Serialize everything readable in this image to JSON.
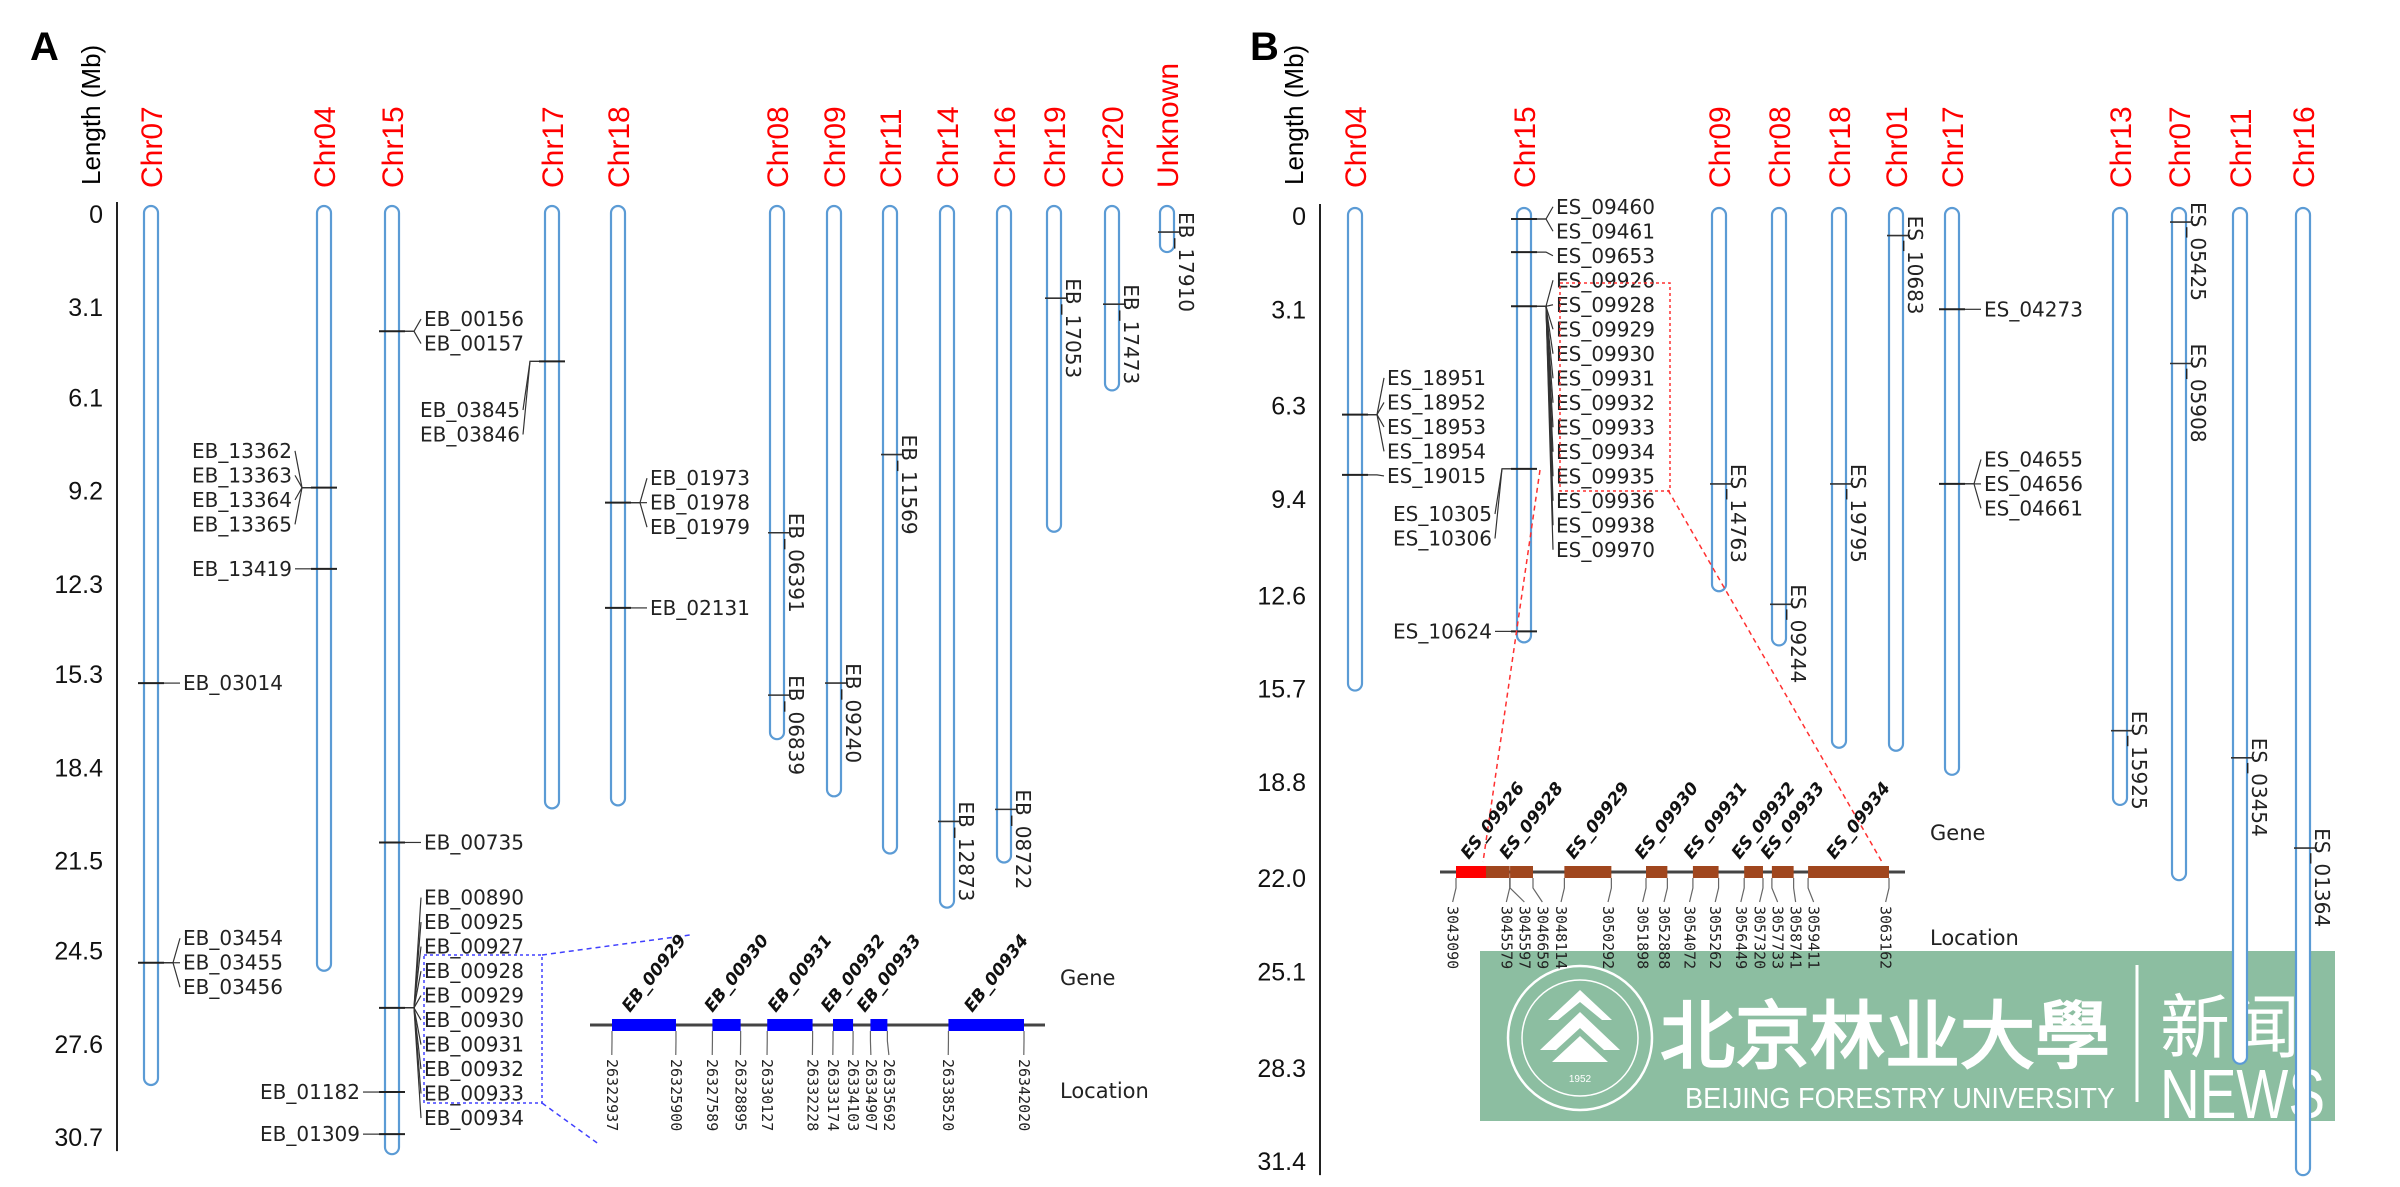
{
  "panels": [
    {
      "id": "A",
      "letter": "A",
      "axis_title": "Length (Mb)",
      "ticks": [
        "0",
        "3.1",
        "6.1",
        "9.2",
        "12.3",
        "15.3",
        "18.4",
        "21.5",
        "24.5",
        "27.6",
        "30.7"
      ],
      "tick_values": [
        0,
        3.1,
        6.1,
        9.2,
        12.3,
        15.3,
        18.4,
        21.5,
        24.5,
        27.6,
        30.7
      ],
      "chromosome_color": "#5b9bd5",
      "label_color": "#ff0000",
      "highlight_color": "#0000ff",
      "chromosomes": [
        {
          "name": "Chr07",
          "length": 28.7
        },
        {
          "name": "Chr04",
          "length": 24.9
        },
        {
          "name": "Chr15",
          "length": 31.0
        },
        {
          "name": "Chr17",
          "length": 19.5
        },
        {
          "name": "Chr18",
          "length": 19.4
        },
        {
          "name": "Chr08",
          "length": 17.2
        },
        {
          "name": "Chr09",
          "length": 19.1
        },
        {
          "name": "Chr11",
          "length": 21.0
        },
        {
          "name": "Chr14",
          "length": 22.8
        },
        {
          "name": "Chr16",
          "length": 21.3
        },
        {
          "name": "Chr19",
          "length": 10.3
        },
        {
          "name": "Chr20",
          "length": 5.6
        },
        {
          "name": "Unknown",
          "length": 1.0
        }
      ],
      "markers": [
        {
          "chr": "Chr07",
          "pos": 15.6,
          "label": "EB_03014"
        },
        {
          "chr": "Chr07",
          "pos": 24.9,
          "label": "EB_03454"
        },
        {
          "chr": "Chr07",
          "pos": 24.9,
          "label": "EB_03455"
        },
        {
          "chr": "Chr07",
          "pos": 24.9,
          "label": "EB_03456"
        },
        {
          "chr": "Chr04",
          "pos": 9.1,
          "label": "EB_13362"
        },
        {
          "chr": "Chr04",
          "pos": 9.1,
          "label": "EB_13363"
        },
        {
          "chr": "Chr04",
          "pos": 9.1,
          "label": "EB_13364"
        },
        {
          "chr": "Chr04",
          "pos": 9.1,
          "label": "EB_13365"
        },
        {
          "chr": "Chr04",
          "pos": 11.8,
          "label": "EB_13419"
        },
        {
          "chr": "Chr15",
          "pos": 3.9,
          "label": "EB_00156"
        },
        {
          "chr": "Chr15",
          "pos": 3.9,
          "label": "EB_00157"
        },
        {
          "chr": "Chr15",
          "pos": 20.9,
          "label": "EB_00735"
        },
        {
          "chr": "Chr15",
          "pos": 26.4,
          "label": "EB_00890"
        },
        {
          "chr": "Chr15",
          "pos": 26.4,
          "label": "EB_00925"
        },
        {
          "chr": "Chr15",
          "pos": 26.4,
          "label": "EB_00927"
        },
        {
          "chr": "Chr15",
          "pos": 26.4,
          "label": "EB_00928"
        },
        {
          "chr": "Chr15",
          "pos": 26.4,
          "label": "EB_00929",
          "highlight": true
        },
        {
          "chr": "Chr15",
          "pos": 26.4,
          "label": "EB_00930",
          "highlight": true
        },
        {
          "chr": "Chr15",
          "pos": 26.4,
          "label": "EB_00931",
          "highlight": true
        },
        {
          "chr": "Chr15",
          "pos": 26.4,
          "label": "EB_00932",
          "highlight": true
        },
        {
          "chr": "Chr15",
          "pos": 26.4,
          "label": "EB_00933",
          "highlight": true
        },
        {
          "chr": "Chr15",
          "pos": 26.4,
          "label": "EB_00934",
          "highlight": true
        },
        {
          "chr": "Chr15",
          "pos": 29.2,
          "label": "EB_01182"
        },
        {
          "chr": "Chr15",
          "pos": 30.6,
          "label": "EB_01309"
        },
        {
          "chr": "Chr17",
          "pos": 4.9,
          "label": "EB_03845"
        },
        {
          "chr": "Chr17",
          "pos": 4.9,
          "label": "EB_03846"
        },
        {
          "chr": "Chr18",
          "pos": 9.6,
          "label": "EB_01973"
        },
        {
          "chr": "Chr18",
          "pos": 9.6,
          "label": "EB_01978"
        },
        {
          "chr": "Chr18",
          "pos": 9.6,
          "label": "EB_01979"
        },
        {
          "chr": "Chr18",
          "pos": 13.1,
          "label": "EB_02131"
        },
        {
          "chr": "Chr08",
          "pos": 10.6,
          "label": "EB_06391"
        },
        {
          "chr": "Chr08",
          "pos": 16.0,
          "label": "EB_06839"
        },
        {
          "chr": "Chr09",
          "pos": 15.6,
          "label": "EB_09240"
        },
        {
          "chr": "Chr11",
          "pos": 8.0,
          "label": "EB_11569"
        },
        {
          "chr": "Chr14",
          "pos": 20.2,
          "label": "EB_12873"
        },
        {
          "chr": "Chr16",
          "pos": 19.8,
          "label": "EB_08722"
        },
        {
          "chr": "Chr19",
          "pos": 2.8,
          "label": "EB_17053"
        },
        {
          "chr": "Chr20",
          "pos": 3.0,
          "label": "EB_17473"
        },
        {
          "chr": "Unknown",
          "pos": 0.6,
          "label": "EB_17910"
        }
      ],
      "inset": {
        "gene_label": "Gene",
        "location_label": "Location",
        "gene_color": "#0000ff",
        "genes": [
          {
            "name": "EB_00929",
            "start": 26322937,
            "end": 26325900
          },
          {
            "name": "EB_00930",
            "start": 26327589,
            "end": 26328895
          },
          {
            "name": "EB_00931",
            "start": 26330127,
            "end": 26332228
          },
          {
            "name": "EB_00932",
            "start": 26333174,
            "end": 26334103
          },
          {
            "name": "EB_00933",
            "start": 26334907,
            "end": 26335692
          },
          {
            "name": "EB_00934",
            "start": 26338520,
            "end": 26342020
          }
        ]
      }
    },
    {
      "id": "B",
      "letter": "B",
      "axis_title": "Length (Mb)",
      "ticks": [
        "0",
        "3.1",
        "6.3",
        "9.4",
        "12.6",
        "15.7",
        "18.8",
        "22.0",
        "25.1",
        "28.3",
        "31.4"
      ],
      "tick_values": [
        0,
        3.1,
        6.3,
        9.4,
        12.6,
        15.7,
        18.8,
        22.0,
        25.1,
        28.3,
        31.4
      ],
      "chromosome_color": "#5b9bd5",
      "label_color": "#ff0000",
      "highlight_color": "#ff0000",
      "chromosomes": [
        {
          "name": "Chr04",
          "length": 15.5
        },
        {
          "name": "Chr15",
          "length": 13.9
        },
        {
          "name": "Chr09",
          "length": 12.2
        },
        {
          "name": "Chr08",
          "length": 14.0
        },
        {
          "name": "Chr18",
          "length": 17.4
        },
        {
          "name": "Chr01",
          "length": 17.5
        },
        {
          "name": "Chr17",
          "length": 18.3
        },
        {
          "name": "Chr13",
          "length": 19.3
        },
        {
          "name": "Chr07",
          "length": 21.8
        },
        {
          "name": "Chr11",
          "length": 27.9
        },
        {
          "name": "Chr16",
          "length": 31.6
        }
      ],
      "markers": [
        {
          "chr": "Chr04",
          "pos": 6.6,
          "label": "ES_18951"
        },
        {
          "chr": "Chr04",
          "pos": 6.6,
          "label": "ES_18952"
        },
        {
          "chr": "Chr04",
          "pos": 6.6,
          "label": "ES_18953"
        },
        {
          "chr": "Chr04",
          "pos": 6.6,
          "label": "ES_18954"
        },
        {
          "chr": "Chr04",
          "pos": 8.6,
          "label": "ES_19015"
        },
        {
          "chr": "Chr15",
          "pos": 0.1,
          "label": "ES_09460"
        },
        {
          "chr": "Chr15",
          "pos": 0.1,
          "label": "ES_09461"
        },
        {
          "chr": "Chr15",
          "pos": 1.2,
          "label": "ES_09653"
        },
        {
          "chr": "Chr15",
          "pos": 3.0,
          "label": "ES_09926",
          "highlight": true
        },
        {
          "chr": "Chr15",
          "pos": 3.0,
          "label": "ES_09928",
          "highlight": true
        },
        {
          "chr": "Chr15",
          "pos": 3.0,
          "label": "ES_09929",
          "highlight": true
        },
        {
          "chr": "Chr15",
          "pos": 3.0,
          "label": "ES_09930",
          "highlight": true
        },
        {
          "chr": "Chr15",
          "pos": 3.0,
          "label": "ES_09931",
          "highlight": true
        },
        {
          "chr": "Chr15",
          "pos": 3.0,
          "label": "ES_09932",
          "highlight": true
        },
        {
          "chr": "Chr15",
          "pos": 3.0,
          "label": "ES_09933",
          "highlight": true
        },
        {
          "chr": "Chr15",
          "pos": 3.0,
          "label": "ES_09934",
          "highlight": true
        },
        {
          "chr": "Chr15",
          "pos": 3.0,
          "label": "ES_09935"
        },
        {
          "chr": "Chr15",
          "pos": 3.0,
          "label": "ES_09936"
        },
        {
          "chr": "Chr15",
          "pos": 3.0,
          "label": "ES_09938"
        },
        {
          "chr": "Chr15",
          "pos": 3.0,
          "label": "ES_09970"
        },
        {
          "chr": "Chr15",
          "pos": 8.4,
          "label": "ES_10305"
        },
        {
          "chr": "Chr15",
          "pos": 8.4,
          "label": "ES_10306"
        },
        {
          "chr": "Chr15",
          "pos": 13.8,
          "label": "ES_10624"
        },
        {
          "chr": "Chr09",
          "pos": 8.9,
          "label": "ES_14763"
        },
        {
          "chr": "Chr08",
          "pos": 12.9,
          "label": "ES_09244"
        },
        {
          "chr": "Chr18",
          "pos": 8.9,
          "label": "ES_19795"
        },
        {
          "chr": "Chr01",
          "pos": 0.65,
          "label": "ES_10683"
        },
        {
          "chr": "Chr17",
          "pos": 3.1,
          "label": "ES_04273"
        },
        {
          "chr": "Chr17",
          "pos": 8.9,
          "label": "ES_04655"
        },
        {
          "chr": "Chr17",
          "pos": 8.9,
          "label": "ES_04656"
        },
        {
          "chr": "Chr17",
          "pos": 8.9,
          "label": "ES_04661"
        },
        {
          "chr": "Chr13",
          "pos": 17.1,
          "label": "ES_15925"
        },
        {
          "chr": "Chr07",
          "pos": 0.2,
          "label": "ES_05425"
        },
        {
          "chr": "Chr07",
          "pos": 4.9,
          "label": "ES_05908"
        },
        {
          "chr": "Chr11",
          "pos": 18.0,
          "label": "ES_03454"
        },
        {
          "chr": "Chr16",
          "pos": 21.0,
          "label": "ES_01364"
        }
      ],
      "inset": {
        "gene_label": "Gene",
        "location_label": "Location",
        "gene_color": "#a0461e",
        "first_gene_color": "#ff0000",
        "genes": [
          {
            "name": "ES_09926",
            "start": 3043090,
            "end": 3045579
          },
          {
            "name": "ES_09928",
            "start": 3045597,
            "end": 3046659
          },
          {
            "name": "ES_09929",
            "start": 3048114,
            "end": 3050292
          },
          {
            "name": "ES_09930",
            "start": 3051898,
            "end": 3052888
          },
          {
            "name": "ES_09931",
            "start": 3054072,
            "end": 3055262
          },
          {
            "name": "ES_09932",
            "start": 3056449,
            "end": 3057320
          },
          {
            "name": "ES_09933",
            "start": 3057733,
            "end": 3058741
          },
          {
            "name": "ES_09934",
            "start": 3059411,
            "end": 3063162
          }
        ]
      }
    }
  ],
  "watermark": {
    "university_cn": "北京林业大學",
    "news_cn": "新闻",
    "news_en": "NEWS",
    "university_en": "BEIJING FORESTRY UNIVERSITY",
    "seal_text": "BEIJING FORESTRY UNIVERSITY",
    "seal_year": "1952",
    "color": "#5fa57d"
  }
}
